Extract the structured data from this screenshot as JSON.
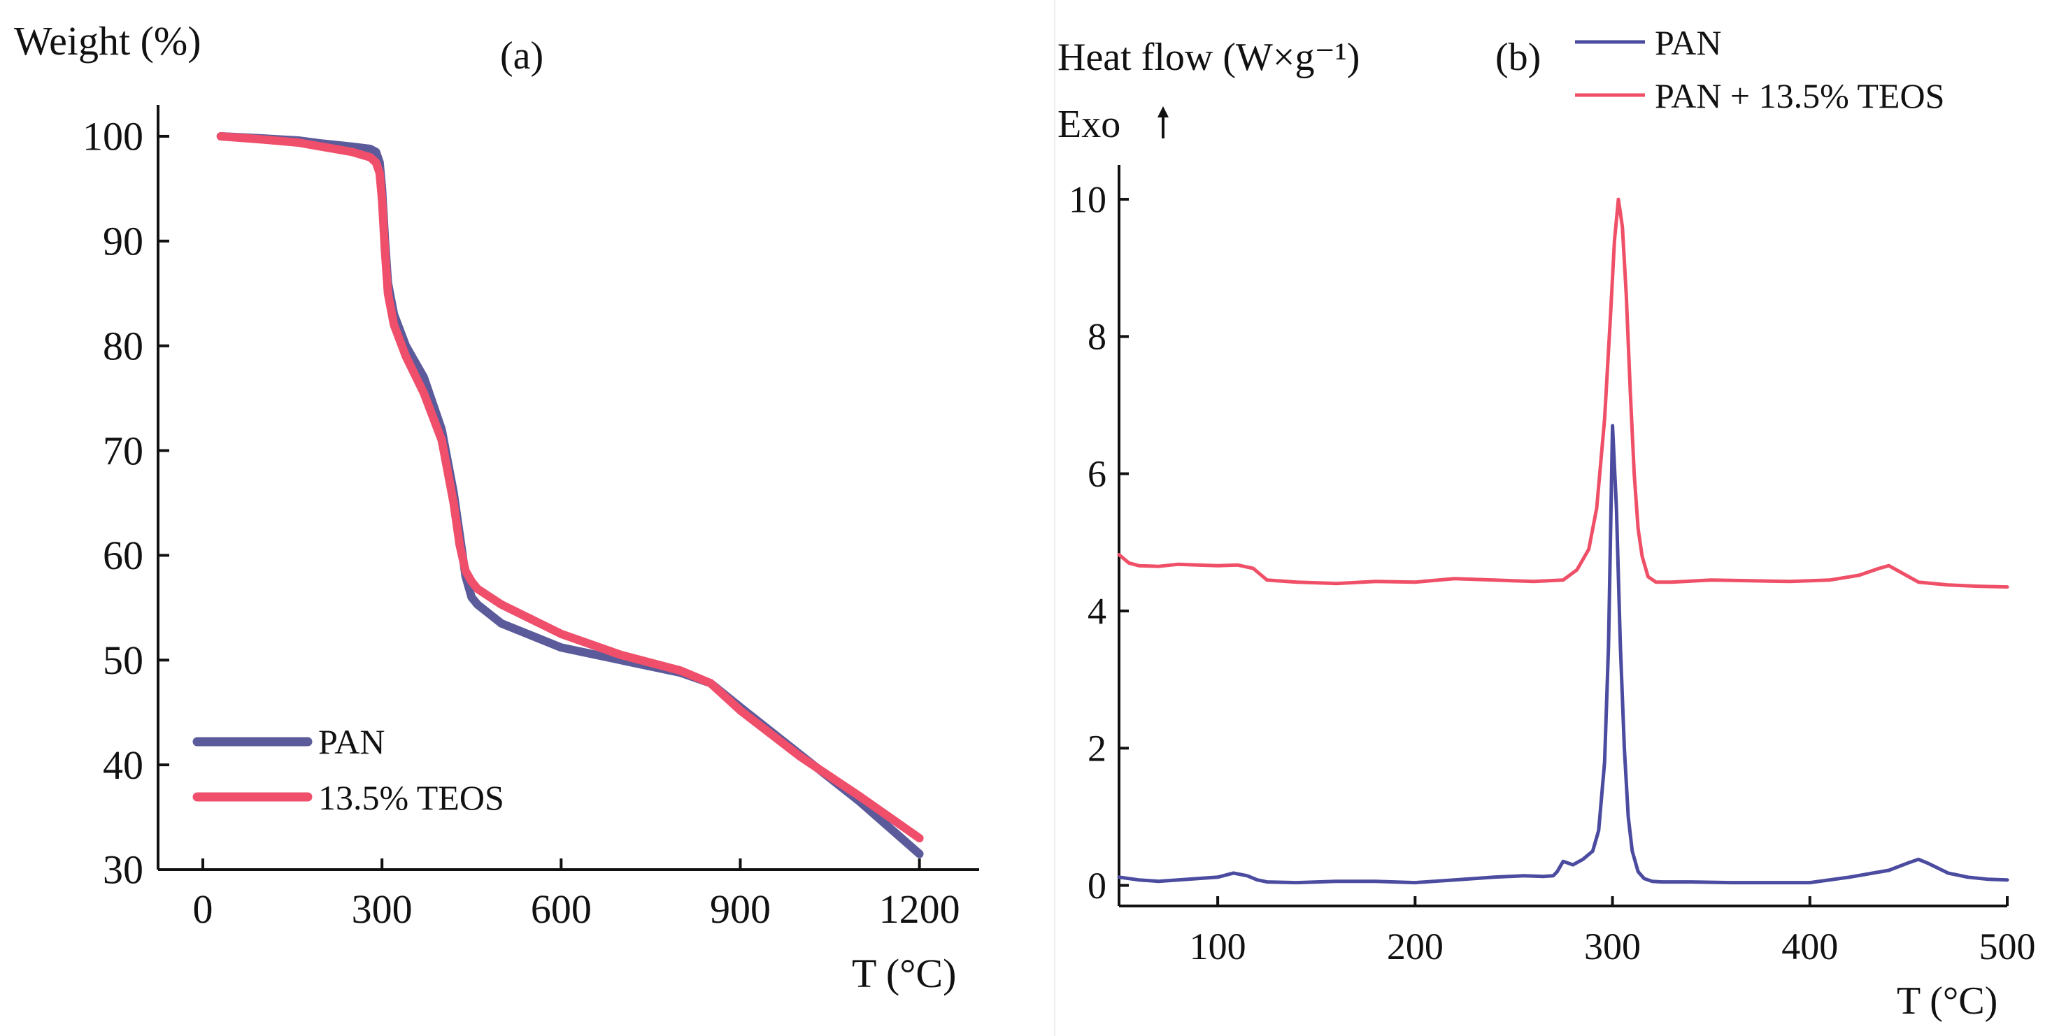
{
  "colors": {
    "pan": "#5b5b9b",
    "teos_a": "#ef4f6a",
    "teos_b": "#ef5068",
    "pan_b": "#4b4ba0",
    "axis": "#111111"
  },
  "chart_data": [
    {
      "id": "a",
      "type": "line",
      "panel_label": "(a)",
      "ylabel": "Weight (%)",
      "xlabel": "T (°C)",
      "xlim": [
        -75,
        1300
      ],
      "ylim": [
        30,
        103
      ],
      "xticks": [
        0,
        300,
        600,
        900,
        1200
      ],
      "yticks": [
        30,
        40,
        50,
        60,
        70,
        80,
        90,
        100
      ],
      "legend": {
        "position": "bottom-left",
        "entries": [
          "PAN",
          "13.5% TEOS"
        ]
      },
      "series": [
        {
          "name": "PAN",
          "color_key": "pan",
          "x": [
            30,
            100,
            160,
            200,
            250,
            280,
            290,
            296,
            300,
            305,
            310,
            320,
            340,
            370,
            400,
            420,
            430,
            440,
            450,
            460,
            500,
            600,
            700,
            800,
            850,
            900,
            1000,
            1100,
            1200
          ],
          "y": [
            100,
            99.8,
            99.6,
            99.3,
            99.0,
            98.8,
            98.5,
            97.5,
            95,
            90,
            86,
            83,
            80,
            77,
            72,
            66,
            62,
            58,
            56,
            55.3,
            53.5,
            51.2,
            50,
            48.8,
            47.8,
            45.5,
            41,
            36.5,
            31.5
          ]
        },
        {
          "name": "13.5% TEOS",
          "color_key": "teos_a",
          "x": [
            30,
            100,
            160,
            200,
            250,
            280,
            290,
            296,
            300,
            305,
            310,
            320,
            340,
            370,
            400,
            420,
            430,
            440,
            450,
            460,
            500,
            600,
            700,
            800,
            850,
            900,
            1000,
            1100,
            1200
          ],
          "y": [
            100,
            99.7,
            99.4,
            99.0,
            98.5,
            98.0,
            97.5,
            96.5,
            94,
            89,
            85,
            82,
            79,
            75.5,
            71,
            65,
            61,
            58.5,
            57.5,
            56.8,
            55.3,
            52.5,
            50.5,
            49,
            47.8,
            45.2,
            40.8,
            37,
            33
          ]
        }
      ]
    },
    {
      "id": "b",
      "type": "line",
      "panel_label": "(b)",
      "ylabel": "Heat flow (W×g⁻¹)",
      "exo_label": "Exo",
      "xlabel": "T (°C)",
      "xlim": [
        50,
        500
      ],
      "ylim": [
        -0.3,
        10.5
      ],
      "xticks": [
        100,
        200,
        300,
        400,
        500
      ],
      "yticks": [
        0,
        2,
        4,
        6,
        8,
        10
      ],
      "legend": {
        "position": "top-right",
        "entries": [
          "PAN",
          "PAN + 13.5% TEOS"
        ]
      },
      "series": [
        {
          "name": "PAN",
          "color_key": "pan_b",
          "x": [
            50,
            60,
            70,
            80,
            90,
            100,
            108,
            115,
            120,
            125,
            140,
            160,
            180,
            200,
            220,
            240,
            255,
            265,
            270,
            272,
            275,
            280,
            285,
            290,
            293,
            296,
            298,
            300,
            302,
            304,
            306,
            308,
            310,
            313,
            316,
            320,
            325,
            340,
            360,
            380,
            400,
            420,
            440,
            450,
            455,
            460,
            470,
            480,
            490,
            500
          ],
          "y": [
            0.12,
            0.08,
            0.06,
            0.08,
            0.1,
            0.12,
            0.18,
            0.14,
            0.08,
            0.05,
            0.04,
            0.06,
            0.06,
            0.04,
            0.08,
            0.12,
            0.14,
            0.13,
            0.14,
            0.2,
            0.35,
            0.3,
            0.38,
            0.5,
            0.8,
            1.8,
            3.5,
            6.7,
            5.5,
            3.5,
            2.0,
            1.0,
            0.5,
            0.2,
            0.1,
            0.06,
            0.05,
            0.05,
            0.04,
            0.04,
            0.04,
            0.12,
            0.22,
            0.33,
            0.38,
            0.32,
            0.18,
            0.12,
            0.09,
            0.08
          ]
        },
        {
          "name": "PAN + 13.5% TEOS",
          "color_key": "teos_b",
          "x": [
            50,
            55,
            60,
            70,
            80,
            90,
            100,
            110,
            118,
            125,
            140,
            160,
            180,
            200,
            220,
            240,
            260,
            275,
            282,
            288,
            292,
            296,
            299,
            301,
            303,
            305,
            307,
            309,
            311,
            313,
            315,
            318,
            322,
            330,
            350,
            370,
            390,
            410,
            425,
            435,
            440,
            445,
            455,
            470,
            485,
            500
          ],
          "y": [
            4.82,
            4.7,
            4.66,
            4.65,
            4.68,
            4.67,
            4.66,
            4.67,
            4.62,
            4.45,
            4.42,
            4.4,
            4.43,
            4.42,
            4.47,
            4.45,
            4.43,
            4.45,
            4.6,
            4.9,
            5.5,
            6.8,
            8.3,
            9.4,
            10.0,
            9.6,
            8.6,
            7.2,
            6.0,
            5.2,
            4.8,
            4.5,
            4.42,
            4.42,
            4.45,
            4.44,
            4.43,
            4.45,
            4.52,
            4.62,
            4.66,
            4.58,
            4.42,
            4.38,
            4.36,
            4.35
          ]
        }
      ]
    }
  ]
}
